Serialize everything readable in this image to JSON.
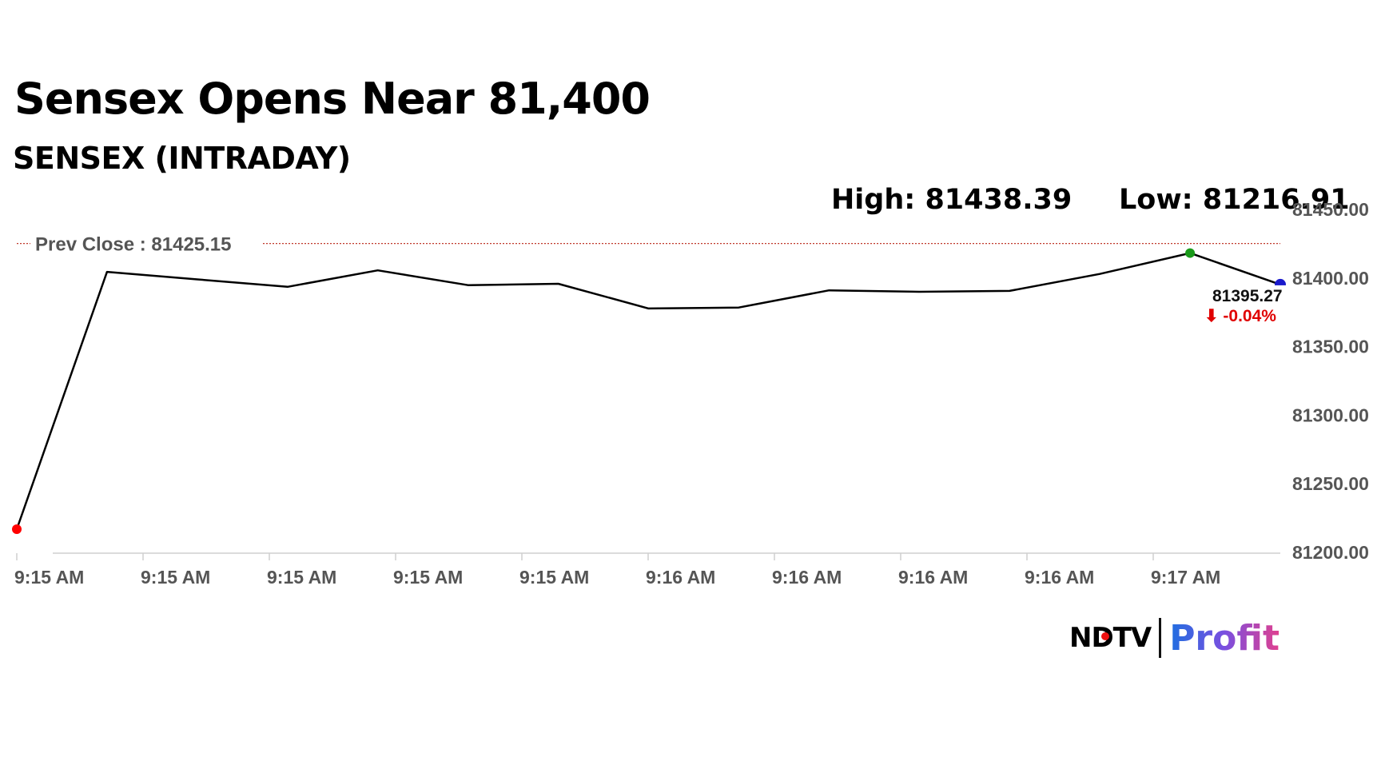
{
  "header": {
    "title": "Sensex Opens Near 81,400",
    "subtitle": "SENSEX (INTRADAY)",
    "high_text": "High: 81438.39",
    "low_text": "Low: 81216.91"
  },
  "logo": {
    "brand": "NDTV",
    "product": "Profit"
  },
  "colors": {
    "line": "#000000",
    "prev_close": "#c0392b",
    "low_marker": "#ff0000",
    "high_marker": "#1a9a1a",
    "last_marker": "#1a1acc",
    "change_negative": "#e00000",
    "logo_gradient_start": "#1f6fe0",
    "logo_gradient_end": "#e0408f"
  },
  "chart_data": {
    "type": "line",
    "title": "SENSEX (INTRADAY)",
    "x_tick_labels": [
      "9:15 AM",
      "9:15 AM",
      "9:15 AM",
      "9:15 AM",
      "9:15 AM",
      "9:16 AM",
      "9:16 AM",
      "9:16 AM",
      "9:16 AM",
      "9:17 AM"
    ],
    "y_tick_labels": [
      "81200.00",
      "81250.00",
      "81300.00",
      "81350.00",
      "81400.00",
      "81450.00"
    ],
    "ylim": [
      81200,
      81450
    ],
    "grid": false,
    "series": [
      {
        "values": [
          81216.91,
          81404.5,
          81399.0,
          81393.6,
          81405.6,
          81394.8,
          81395.8,
          81377.8,
          81378.5,
          81391.0,
          81390.0,
          81390.6,
          81403.0,
          81418.2,
          81395.27
        ]
      }
    ],
    "prev_close": {
      "label": "Prev Close : 81425.15",
      "value": 81425.15
    },
    "high": 81438.39,
    "low": 81216.91,
    "last": {
      "value_label": "81395.27",
      "change_label": "⬇ -0.04%"
    }
  }
}
